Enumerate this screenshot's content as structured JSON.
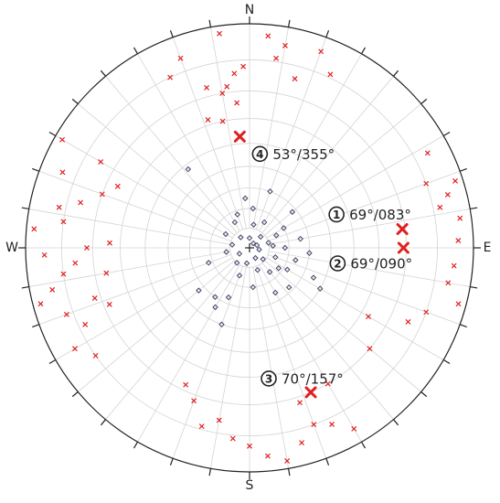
{
  "chart_data": {
    "type": "stereonet",
    "projection": "equal-angle",
    "grid": true,
    "dip_ticks": [
      10,
      20,
      30,
      40,
      50,
      60,
      70,
      80
    ],
    "azimuth_ticks": [
      0,
      10,
      20,
      30,
      40,
      50,
      60,
      70,
      80,
      90,
      100,
      110,
      120,
      130,
      140,
      150,
      160,
      170,
      180,
      190,
      200,
      210,
      220,
      230,
      240,
      250,
      260,
      270,
      280,
      290,
      300,
      310,
      320,
      330,
      340,
      350
    ],
    "cardinals": [
      {
        "value": 0,
        "label": "N"
      },
      {
        "value": 90,
        "label": "E"
      },
      {
        "value": 180,
        "label": "S"
      },
      {
        "value": 270,
        "label": "W"
      }
    ],
    "series": [
      {
        "marker": "x",
        "color": "#e02020",
        "dip_direction": [
          352,
          5,
          10,
          8,
          358,
          355,
          352,
          345,
          340,
          335,
          350,
          355,
          342,
          348,
          20,
          25,
          15,
          62,
          72,
          75,
          78,
          82,
          88,
          95,
          100,
          105,
          110,
          115,
          70,
          120,
          130,
          150,
          155,
          160,
          165,
          170,
          175,
          180,
          185,
          190,
          195,
          200,
          205,
          162,
          150,
          170,
          245,
          250,
          255,
          258,
          262,
          265,
          268,
          270,
          275,
          278,
          282,
          285,
          290,
          292,
          295,
          300,
          252,
          248,
          240,
          235,
          260,
          272,
          300
        ],
        "dip": [
          88,
          87,
          85,
          81,
          78,
          76,
          72,
          73,
          84,
          80,
          70,
          66,
          62,
          60,
          86,
          81,
          76,
          84,
          88,
          85,
          82,
          87,
          86,
          85,
          84,
          88,
          80,
          76,
          80,
          63,
          70,
          86,
          82,
          80,
          84,
          88,
          86,
          83,
          81,
          76,
          79,
          72,
          68,
          72,
          70,
          62,
          78,
          82,
          88,
          84,
          80,
          76,
          85,
          72,
          88,
          80,
          82,
          76,
          70,
          84,
          66,
          75,
          72,
          68,
          84,
          80,
          66,
          64,
          88
        ]
      },
      {
        "marker": "diamond",
        "color": "#3a3a5a",
        "dip_direction": [
          10,
          30,
          45,
          60,
          75,
          90,
          100,
          110,
          120,
          130,
          140,
          150,
          160,
          175,
          190,
          200,
          220,
          240,
          260,
          280,
          300,
          320,
          340,
          355,
          20,
          50,
          80,
          95,
          105,
          135,
          150,
          70,
          40,
          0,
          250,
          230,
          200,
          215,
          115,
          120,
          5,
          330,
          85,
          65,
          125,
          322,
          203,
          210
        ],
        "dip": [
          12,
          15,
          8,
          20,
          10,
          18,
          5,
          14,
          22,
          9,
          16,
          6,
          12,
          20,
          8,
          15,
          10,
          6,
          12,
          9,
          14,
          7,
          18,
          25,
          30,
          28,
          26,
          30,
          24,
          28,
          26,
          4,
          3,
          5,
          22,
          33,
          40,
          30,
          35,
          40,
          20,
          15,
          12,
          15,
          18,
          48,
          27,
          34
        ]
      }
    ],
    "planes": [
      {
        "number": "1",
        "label": "69°/083°",
        "dip": 69,
        "dip_direction": 83
      },
      {
        "number": "2",
        "label": "69°/090°",
        "dip": 69,
        "dip_direction": 90
      },
      {
        "number": "3",
        "label": "70°/157°",
        "dip": 70,
        "dip_direction": 157
      },
      {
        "number": "4",
        "label": "53°/355°",
        "dip": 53,
        "dip_direction": 355
      }
    ],
    "planes_color": "#e02020"
  }
}
